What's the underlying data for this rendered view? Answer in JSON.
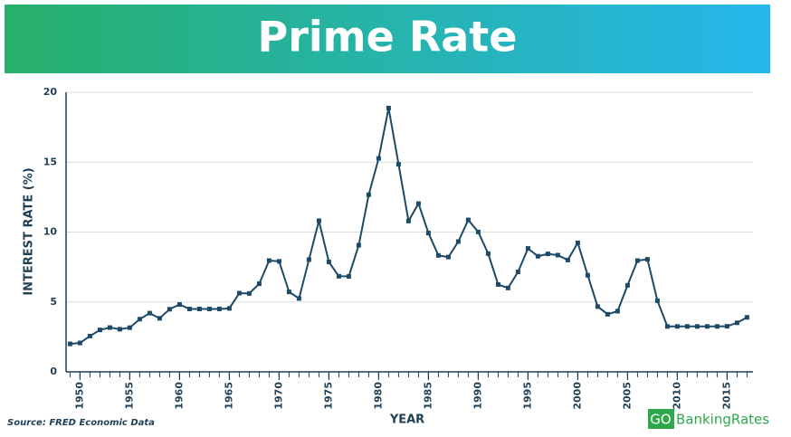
{
  "chart_data": {
    "type": "line",
    "title": "Prime Rate",
    "ylabel": "INTEREST RATE (%)",
    "xlabel": "YEAR",
    "source": "Source: FRED Economic Data",
    "brand": {
      "go": "GO",
      "name": "BankingRates"
    },
    "x": [
      1949,
      1950,
      1951,
      1952,
      1953,
      1954,
      1955,
      1956,
      1957,
      1958,
      1959,
      1960,
      1961,
      1962,
      1963,
      1964,
      1965,
      1966,
      1967,
      1968,
      1969,
      1970,
      1971,
      1972,
      1973,
      1974,
      1975,
      1976,
      1977,
      1978,
      1979,
      1980,
      1981,
      1982,
      1983,
      1984,
      1985,
      1986,
      1987,
      1988,
      1989,
      1990,
      1991,
      1992,
      1993,
      1994,
      1995,
      1996,
      1997,
      1998,
      1999,
      2000,
      2001,
      2002,
      2003,
      2004,
      2005,
      2006,
      2007,
      2008,
      2009,
      2010,
      2011,
      2012,
      2013,
      2014,
      2015,
      2016,
      2017
    ],
    "series": [
      {
        "name": "Prime Rate",
        "color": "#1d4a66",
        "values": [
          2.0,
          2.07,
          2.56,
          3.0,
          3.17,
          3.05,
          3.16,
          3.77,
          4.2,
          3.83,
          4.48,
          4.82,
          4.5,
          4.5,
          4.5,
          4.5,
          4.54,
          5.63,
          5.61,
          6.3,
          7.96,
          7.91,
          5.72,
          5.25,
          8.03,
          10.81,
          7.86,
          6.84,
          6.83,
          9.06,
          12.67,
          15.27,
          18.87,
          14.85,
          10.79,
          12.04,
          9.93,
          8.33,
          8.21,
          9.32,
          10.87,
          10.01,
          8.46,
          6.25,
          6.0,
          7.15,
          8.83,
          8.27,
          8.44,
          8.35,
          8.0,
          9.23,
          6.91,
          4.67,
          4.12,
          4.34,
          6.19,
          7.96,
          8.05,
          5.09,
          3.25,
          3.25,
          3.25,
          3.25,
          3.25,
          3.25,
          3.26,
          3.51,
          3.9
        ]
      }
    ],
    "xlim": [
      1948.6,
      2017.6
    ],
    "xticks": [
      1950,
      1955,
      1960,
      1965,
      1970,
      1975,
      1980,
      1985,
      1990,
      1995,
      2000,
      2005,
      2010,
      2015
    ],
    "ylim": [
      0,
      20
    ],
    "yticks": [
      0,
      5,
      10,
      15,
      20
    ],
    "grid": true
  }
}
